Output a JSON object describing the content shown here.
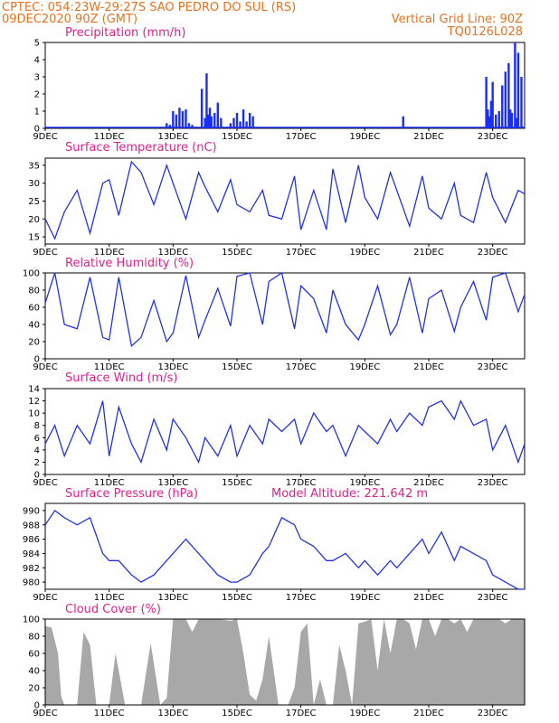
{
  "header": {
    "source_line": "CPTEC:  054:23W-29:27S  SAO PEDRO DO SUL (RS)",
    "date_line": "09DEC2020 90Z (GMT)",
    "grid_line": "Vertical Grid Line: 90Z",
    "code": "TQ0126L028"
  },
  "x_axis": {
    "day_range": [
      9,
      24
    ],
    "ticks": [
      {
        "day": 9,
        "label": "9DEC"
      },
      {
        "day": 11,
        "label": "11DEC"
      },
      {
        "day": 13,
        "label": "13DEC"
      },
      {
        "day": 15,
        "label": "15DEC"
      },
      {
        "day": 17,
        "label": "17DEC"
      },
      {
        "day": 19,
        "label": "19DEC"
      },
      {
        "day": 21,
        "label": "21DEC"
      },
      {
        "day": 23,
        "label": "23DEC"
      }
    ]
  },
  "colors": {
    "line": "#2233dd",
    "bar": "#1a2ef5",
    "cloud": "#a8a8a8",
    "title": "#e0208c",
    "header": "#e8701e"
  },
  "chart_data": [
    {
      "type": "bar",
      "title": "Precipitation (mm/h)",
      "ylim": [
        0,
        5
      ],
      "yticks": [
        0,
        1,
        2,
        3,
        4,
        5
      ],
      "x": [
        12.8,
        12.9,
        13.0,
        13.1,
        13.2,
        13.3,
        13.4,
        13.5,
        13.6,
        13.9,
        14.0,
        14.05,
        14.1,
        14.15,
        14.2,
        14.3,
        14.4,
        14.5,
        14.8,
        14.9,
        15.0,
        15.1,
        15.2,
        15.3,
        15.4,
        15.5,
        20.2,
        22.8,
        22.85,
        22.9,
        22.95,
        23.0,
        23.1,
        23.2,
        23.3,
        23.4,
        23.5,
        23.55,
        23.6,
        23.7,
        23.75,
        23.8,
        23.9
      ],
      "values": [
        0.3,
        0.2,
        1.0,
        0.8,
        1.2,
        1.0,
        1.1,
        0.3,
        0.2,
        2.3,
        0.6,
        3.2,
        0.8,
        1.2,
        0.7,
        0.9,
        1.5,
        0.6,
        0.3,
        0.6,
        0.9,
        0.4,
        1.1,
        0.4,
        0.9,
        0.7,
        0.7,
        3.0,
        1.1,
        0.7,
        1.6,
        2.7,
        0.8,
        1.0,
        2.5,
        3.3,
        3.8,
        1.1,
        0.9,
        5.0,
        0.6,
        4.4,
        3.0
      ]
    },
    {
      "type": "line",
      "title": "Surface Temperature (nC)",
      "ylim": [
        13,
        37
      ],
      "yticks": [
        15,
        20,
        25,
        30,
        35
      ],
      "x": [
        9.0,
        9.3,
        9.6,
        10.0,
        10.4,
        10.8,
        11.0,
        11.3,
        11.7,
        12.0,
        12.4,
        12.8,
        13.0,
        13.4,
        13.8,
        14.0,
        14.4,
        14.8,
        15.0,
        15.4,
        15.8,
        16.0,
        16.4,
        16.8,
        17.0,
        17.4,
        17.8,
        18.0,
        18.4,
        18.8,
        19.0,
        19.4,
        19.8,
        20.0,
        20.4,
        20.8,
        21.0,
        21.4,
        21.8,
        22.0,
        22.4,
        22.8,
        23.0,
        23.4,
        23.8,
        24.0
      ],
      "values": [
        20,
        14.5,
        22,
        28,
        16,
        30,
        31,
        21,
        36,
        33,
        24,
        35,
        30,
        20,
        33,
        29,
        22,
        31,
        24,
        22,
        28,
        21,
        20,
        32,
        17,
        28,
        17,
        34,
        19,
        35,
        26,
        20,
        33,
        28,
        18,
        32,
        23,
        20,
        30,
        21,
        19,
        33,
        26,
        19,
        28,
        27
      ]
    },
    {
      "type": "line",
      "title": "Relative Humidity (%)",
      "ylim": [
        0,
        100
      ],
      "yticks": [
        0,
        20,
        40,
        60,
        80,
        100
      ],
      "x": [
        9.0,
        9.3,
        9.6,
        10.0,
        10.4,
        10.8,
        11.0,
        11.3,
        11.7,
        12.0,
        12.4,
        12.8,
        13.0,
        13.4,
        13.8,
        14.0,
        14.4,
        14.8,
        15.0,
        15.4,
        15.8,
        16.0,
        16.4,
        16.8,
        17.0,
        17.4,
        17.8,
        18.0,
        18.4,
        18.8,
        19.0,
        19.4,
        19.8,
        20.0,
        20.4,
        20.8,
        21.0,
        21.4,
        21.8,
        22.0,
        22.4,
        22.8,
        23.0,
        23.4,
        23.8,
        24.0
      ],
      "values": [
        65,
        100,
        40,
        35,
        95,
        25,
        22,
        95,
        15,
        25,
        68,
        20,
        30,
        97,
        25,
        45,
        82,
        38,
        96,
        100,
        40,
        90,
        100,
        35,
        85,
        70,
        30,
        80,
        40,
        22,
        40,
        85,
        28,
        40,
        95,
        30,
        70,
        80,
        32,
        60,
        90,
        45,
        95,
        100,
        55,
        75
      ]
    },
    {
      "type": "line",
      "title": "Surface Wind (m/s)",
      "ylim": [
        0,
        14
      ],
      "yticks": [
        0,
        2,
        4,
        6,
        8,
        10,
        12,
        14
      ],
      "x": [
        9.0,
        9.3,
        9.6,
        10.0,
        10.4,
        10.8,
        11.0,
        11.3,
        11.7,
        12.0,
        12.4,
        12.8,
        13.0,
        13.4,
        13.8,
        14.0,
        14.4,
        14.8,
        15.0,
        15.4,
        15.8,
        16.0,
        16.4,
        16.8,
        17.0,
        17.4,
        17.8,
        18.0,
        18.4,
        18.8,
        19.0,
        19.4,
        19.8,
        20.0,
        20.4,
        20.8,
        21.0,
        21.4,
        21.8,
        22.0,
        22.4,
        22.8,
        23.0,
        23.4,
        23.8,
        24.0
      ],
      "values": [
        5,
        8,
        3,
        8,
        5,
        12,
        3,
        11,
        5,
        2,
        9,
        4,
        9,
        6,
        2,
        6,
        3,
        8,
        3,
        8,
        5,
        9,
        7,
        9,
        5,
        10,
        7,
        8,
        3,
        8,
        7,
        5,
        9,
        7,
        10,
        8,
        11,
        12,
        9,
        12,
        8,
        9,
        4,
        8,
        2,
        5
      ]
    },
    {
      "type": "line",
      "title": "Surface Pressure (hPa)",
      "annotation": "Model Altitude: 221.642 m",
      "ylim": [
        979,
        991
      ],
      "yticks": [
        980,
        982,
        984,
        986,
        988,
        990
      ],
      "x": [
        9.0,
        9.3,
        9.6,
        10.0,
        10.4,
        10.8,
        11.0,
        11.3,
        11.7,
        12.0,
        12.4,
        12.8,
        13.0,
        13.4,
        13.8,
        14.0,
        14.4,
        14.8,
        15.0,
        15.4,
        15.8,
        16.0,
        16.4,
        16.8,
        17.0,
        17.4,
        17.8,
        18.0,
        18.4,
        18.8,
        19.0,
        19.4,
        19.8,
        20.0,
        20.4,
        20.8,
        21.0,
        21.4,
        21.8,
        22.0,
        22.4,
        22.8,
        23.0,
        23.4,
        23.8,
        24.0
      ],
      "values": [
        988,
        990,
        989,
        988,
        989,
        984,
        983,
        983,
        981,
        980,
        981,
        983,
        984,
        986,
        984,
        983,
        981,
        980,
        980,
        981,
        984,
        985,
        989,
        988,
        986,
        985,
        983,
        983,
        984,
        982,
        983,
        981,
        983,
        982,
        984,
        986,
        984,
        987,
        983,
        985,
        984,
        983,
        981,
        980,
        979,
        979
      ]
    },
    {
      "type": "area",
      "title": "Cloud Cover (%)",
      "ylim": [
        0,
        100
      ],
      "yticks": [
        0,
        20,
        40,
        60,
        80,
        100
      ],
      "x": [
        9.0,
        9.2,
        9.4,
        9.5,
        9.6,
        10.0,
        10.2,
        10.4,
        10.6,
        11.0,
        11.2,
        11.5,
        11.8,
        12.0,
        12.3,
        12.6,
        12.8,
        13.0,
        13.4,
        13.6,
        13.8,
        14.0,
        14.4,
        14.8,
        15.0,
        15.2,
        15.4,
        15.6,
        15.8,
        16.0,
        16.3,
        16.6,
        16.8,
        17.0,
        17.2,
        17.4,
        17.6,
        17.8,
        18.0,
        18.2,
        18.4,
        18.6,
        18.8,
        19.0,
        19.2,
        19.4,
        19.6,
        19.8,
        20.0,
        20.2,
        20.4,
        20.6,
        20.8,
        21.0,
        21.2,
        21.4,
        21.6,
        21.8,
        22.0,
        22.2,
        22.4,
        22.6,
        22.8,
        23.0,
        23.2,
        23.4,
        23.6,
        23.8,
        24.0
      ],
      "values": [
        92,
        90,
        60,
        10,
        0,
        0,
        85,
        70,
        0,
        0,
        60,
        0,
        0,
        0,
        72,
        0,
        8,
        100,
        100,
        85,
        100,
        100,
        100,
        98,
        100,
        60,
        12,
        5,
        30,
        80,
        0,
        0,
        20,
        85,
        95,
        0,
        30,
        0,
        0,
        70,
        40,
        0,
        95,
        97,
        100,
        40,
        100,
        60,
        100,
        100,
        95,
        65,
        100,
        100,
        80,
        100,
        100,
        95,
        100,
        85,
        100,
        100,
        100,
        100,
        100,
        95,
        100,
        100,
        100
      ]
    }
  ]
}
